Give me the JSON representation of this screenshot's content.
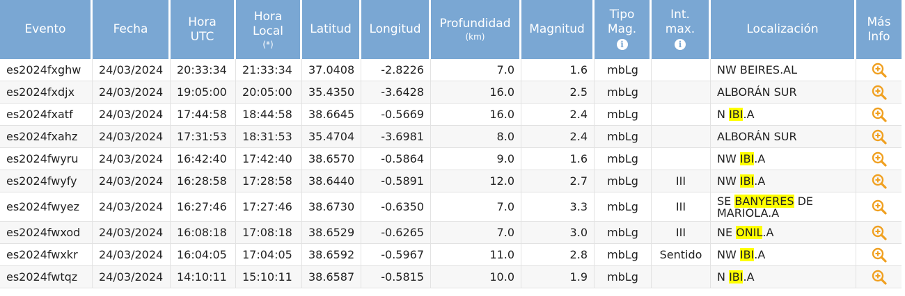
{
  "headers": {
    "evento": "Evento",
    "fecha": "Fecha",
    "hora_utc_1": "Hora",
    "hora_utc_2": "UTC",
    "hora_local_1": "Hora",
    "hora_local_2": "Local",
    "hora_local_note": "(*)",
    "latitud": "Latitud",
    "longitud": "Longitud",
    "profundidad": "Profundidad",
    "profundidad_unit": "(km)",
    "magnitud": "Magnitud",
    "tipo_mag_1": "Tipo",
    "tipo_mag_2": "Mag.",
    "int_max_1": "Int.",
    "int_max_2": "max.",
    "localizacion": "Localización",
    "mas_info_1": "Más",
    "mas_info_2": "Info",
    "info_glyph": "i"
  },
  "rows": [
    {
      "evento": "es2024fxghw",
      "fecha": "24/03/2024",
      "hora_utc": "20:33:34",
      "hora_local": "21:33:34",
      "latitud": "37.0408",
      "longitud": "-2.8226",
      "profundidad": "7.0",
      "magnitud": "1.6",
      "tipo": "mbLg",
      "int": "",
      "loc_pre": "NW BEIRES.AL",
      "loc_hl": "",
      "loc_post": ""
    },
    {
      "evento": "es2024fxdjx",
      "fecha": "24/03/2024",
      "hora_utc": "19:05:00",
      "hora_local": "20:05:00",
      "latitud": "35.4350",
      "longitud": "-3.6428",
      "profundidad": "16.0",
      "magnitud": "2.5",
      "tipo": "mbLg",
      "int": "",
      "loc_pre": "ALBORÁN SUR",
      "loc_hl": "",
      "loc_post": ""
    },
    {
      "evento": "es2024fxatf",
      "fecha": "24/03/2024",
      "hora_utc": "17:44:58",
      "hora_local": "18:44:58",
      "latitud": "38.6645",
      "longitud": "-0.5669",
      "profundidad": "16.0",
      "magnitud": "2.4",
      "tipo": "mbLg",
      "int": "",
      "loc_pre": "N ",
      "loc_hl": "IBI",
      "loc_post": ".A"
    },
    {
      "evento": "es2024fxahz",
      "fecha": "24/03/2024",
      "hora_utc": "17:31:53",
      "hora_local": "18:31:53",
      "latitud": "35.4704",
      "longitud": "-3.6981",
      "profundidad": "8.0",
      "magnitud": "2.4",
      "tipo": "mbLg",
      "int": "",
      "loc_pre": "ALBORÁN SUR",
      "loc_hl": "",
      "loc_post": ""
    },
    {
      "evento": "es2024fwyru",
      "fecha": "24/03/2024",
      "hora_utc": "16:42:40",
      "hora_local": "17:42:40",
      "latitud": "38.6570",
      "longitud": "-0.5864",
      "profundidad": "9.0",
      "magnitud": "1.6",
      "tipo": "mbLg",
      "int": "",
      "loc_pre": "NW ",
      "loc_hl": "IBI",
      "loc_post": ".A"
    },
    {
      "evento": "es2024fwyfy",
      "fecha": "24/03/2024",
      "hora_utc": "16:28:58",
      "hora_local": "17:28:58",
      "latitud": "38.6440",
      "longitud": "-0.5891",
      "profundidad": "12.0",
      "magnitud": "2.7",
      "tipo": "mbLg",
      "int": "III",
      "loc_pre": "NW ",
      "loc_hl": "IBI",
      "loc_post": ".A"
    },
    {
      "evento": "es2024fwyez",
      "fecha": "24/03/2024",
      "hora_utc": "16:27:46",
      "hora_local": "17:27:46",
      "latitud": "38.6730",
      "longitud": "-0.6350",
      "profundidad": "7.0",
      "magnitud": "3.3",
      "tipo": "mbLg",
      "int": "III",
      "loc_pre": "SE ",
      "loc_hl": "BANYERES",
      "loc_post": " DE MARIOLA.A",
      "tall": true
    },
    {
      "evento": "es2024fwxod",
      "fecha": "24/03/2024",
      "hora_utc": "16:08:18",
      "hora_local": "17:08:18",
      "latitud": "38.6529",
      "longitud": "-0.6265",
      "profundidad": "7.0",
      "magnitud": "3.0",
      "tipo": "mbLg",
      "int": "III",
      "loc_pre": "NE ",
      "loc_hl": "ONIL",
      "loc_post": ".A"
    },
    {
      "evento": "es2024fwxkr",
      "fecha": "24/03/2024",
      "hora_utc": "16:04:05",
      "hora_local": "17:04:05",
      "latitud": "38.6592",
      "longitud": "-0.5967",
      "profundidad": "11.0",
      "magnitud": "2.8",
      "tipo": "mbLg",
      "int": "Sentido",
      "loc_pre": "NW ",
      "loc_hl": "IBI",
      "loc_post": ".A"
    },
    {
      "evento": "es2024fwtqz",
      "fecha": "24/03/2024",
      "hora_utc": "14:10:11",
      "hora_local": "15:10:11",
      "latitud": "38.6587",
      "longitud": "-0.5815",
      "profundidad": "10.0",
      "magnitud": "1.9",
      "tipo": "mbLg",
      "int": "",
      "loc_pre": "N ",
      "loc_hl": "IBI",
      "loc_post": ".A"
    }
  ],
  "colors": {
    "header_bg": "#7aa7d3",
    "zoom_icon": "#f0a020",
    "highlight": "#ffff00"
  },
  "icons": {
    "info": "info-circle-icon",
    "more": "magnifier-plus-icon"
  }
}
